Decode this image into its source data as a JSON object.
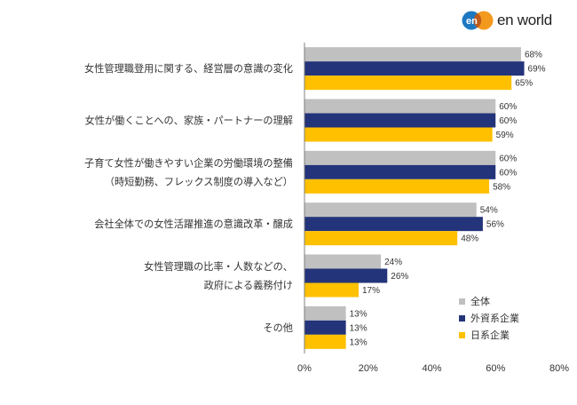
{
  "brand": {
    "logo_mark": "en",
    "name": "en world",
    "colors": {
      "blue": "#1d78c2",
      "orange": "#f39a1e"
    }
  },
  "chart_data": {
    "type": "bar",
    "orientation": "horizontal",
    "categories": [
      [
        "女性管理職登用に関する、経営層の意識の変化"
      ],
      [
        "女性が働くことへの、家族・パートナーの理解"
      ],
      [
        "子育て女性が働きやすい企業の労働環境の整備",
        "（時短勤務、フレックス制度の導入など）"
      ],
      [
        "会社全体での女性活躍推進の意識改革・醸成"
      ],
      [
        "女性管理職の比率・人数などの、",
        "政府による義務付け"
      ],
      [
        "その他"
      ]
    ],
    "series": [
      {
        "name": "全体",
        "color": "#c0c0c0",
        "values": [
          68,
          60,
          60,
          54,
          24,
          13
        ]
      },
      {
        "name": "外資系企業",
        "color": "#23347a",
        "values": [
          69,
          60,
          60,
          56,
          26,
          13
        ]
      },
      {
        "name": "日系企業",
        "color": "#ffc000",
        "values": [
          65,
          59,
          58,
          48,
          17,
          13
        ]
      }
    ],
    "value_suffix": "%",
    "xlim": [
      0,
      80
    ],
    "xticks": [
      "0%",
      "20%",
      "40%",
      "60%",
      "80%"
    ],
    "legend_position": "bottom-right",
    "grid": false
  }
}
